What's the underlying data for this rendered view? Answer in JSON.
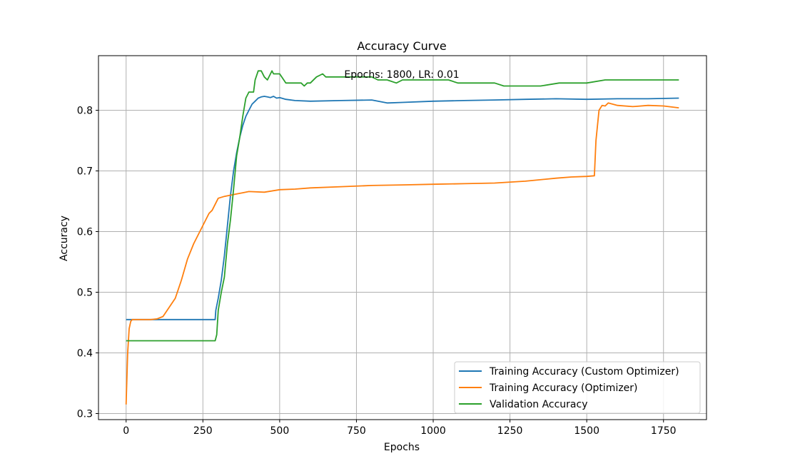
{
  "chart_data": {
    "type": "line",
    "title": "Accuracy Curve",
    "annotation": "Epochs: 1800, LR: 0.01",
    "xlabel": "Epochs",
    "ylabel": "Accuracy",
    "xlim": [
      -90,
      1890
    ],
    "ylim": [
      0.29,
      0.89
    ],
    "xticks": [
      0,
      250,
      500,
      750,
      1000,
      1250,
      1500,
      1750
    ],
    "yticks": [
      0.3,
      0.4,
      0.5,
      0.6,
      0.7,
      0.8
    ],
    "ytick_labels": [
      "0.3",
      "0.4",
      "0.5",
      "0.6",
      "0.7",
      "0.8"
    ],
    "grid": true,
    "legend_position": "lower-right",
    "series": [
      {
        "name": "Training Accuracy (Custom Optimizer)",
        "color": "#1f77b4",
        "x": [
          0,
          290,
          292,
          300,
          310,
          320,
          330,
          340,
          350,
          360,
          370,
          380,
          390,
          400,
          410,
          420,
          430,
          440,
          450,
          460,
          470,
          480,
          490,
          500,
          520,
          550,
          600,
          700,
          800,
          850,
          900,
          1000,
          1100,
          1200,
          1300,
          1400,
          1500,
          1600,
          1700,
          1800
        ],
        "y": [
          0.455,
          0.455,
          0.47,
          0.49,
          0.52,
          0.56,
          0.61,
          0.66,
          0.7,
          0.73,
          0.755,
          0.775,
          0.79,
          0.8,
          0.81,
          0.815,
          0.82,
          0.822,
          0.823,
          0.822,
          0.821,
          0.823,
          0.82,
          0.821,
          0.818,
          0.816,
          0.815,
          0.816,
          0.817,
          0.812,
          0.813,
          0.815,
          0.816,
          0.817,
          0.818,
          0.819,
          0.818,
          0.819,
          0.819,
          0.82
        ]
      },
      {
        "name": "Training Accuracy (Optimizer)",
        "color": "#ff7f0e",
        "x": [
          0,
          5,
          10,
          15,
          20,
          30,
          50,
          80,
          100,
          120,
          140,
          160,
          180,
          200,
          220,
          240,
          260,
          270,
          280,
          290,
          300,
          320,
          340,
          360,
          380,
          400,
          450,
          500,
          550,
          600,
          700,
          800,
          900,
          1000,
          1100,
          1200,
          1300,
          1400,
          1450,
          1500,
          1525,
          1530,
          1540,
          1550,
          1560,
          1570,
          1600,
          1650,
          1700,
          1750,
          1800
        ],
        "y": [
          0.315,
          0.4,
          0.44,
          0.452,
          0.455,
          0.455,
          0.455,
          0.455,
          0.456,
          0.46,
          0.475,
          0.49,
          0.52,
          0.555,
          0.58,
          0.6,
          0.62,
          0.63,
          0.635,
          0.645,
          0.655,
          0.658,
          0.66,
          0.662,
          0.664,
          0.666,
          0.665,
          0.669,
          0.67,
          0.672,
          0.674,
          0.676,
          0.677,
          0.678,
          0.679,
          0.68,
          0.683,
          0.688,
          0.69,
          0.691,
          0.692,
          0.75,
          0.8,
          0.808,
          0.807,
          0.812,
          0.808,
          0.806,
          0.808,
          0.807,
          0.804
        ]
      },
      {
        "name": "Validation Accuracy",
        "color": "#2ca02c",
        "x": [
          0,
          290,
          295,
          300,
          310,
          320,
          330,
          340,
          350,
          360,
          370,
          380,
          390,
          400,
          415,
          420,
          430,
          440,
          450,
          460,
          470,
          475,
          480,
          490,
          500,
          520,
          550,
          570,
          580,
          590,
          600,
          620,
          640,
          650,
          700,
          750,
          800,
          820,
          850,
          880,
          900,
          950,
          1000,
          1050,
          1080,
          1100,
          1150,
          1200,
          1230,
          1250,
          1300,
          1350,
          1410,
          1450,
          1500,
          1560,
          1600,
          1700,
          1800
        ],
        "y": [
          0.42,
          0.42,
          0.43,
          0.47,
          0.5,
          0.525,
          0.58,
          0.62,
          0.67,
          0.725,
          0.755,
          0.79,
          0.82,
          0.83,
          0.83,
          0.85,
          0.865,
          0.865,
          0.855,
          0.85,
          0.86,
          0.865,
          0.86,
          0.86,
          0.86,
          0.845,
          0.845,
          0.845,
          0.84,
          0.845,
          0.845,
          0.855,
          0.86,
          0.855,
          0.855,
          0.855,
          0.855,
          0.85,
          0.85,
          0.845,
          0.85,
          0.85,
          0.85,
          0.85,
          0.845,
          0.845,
          0.845,
          0.845,
          0.84,
          0.84,
          0.84,
          0.84,
          0.845,
          0.845,
          0.845,
          0.85,
          0.85,
          0.85,
          0.85
        ]
      }
    ]
  }
}
